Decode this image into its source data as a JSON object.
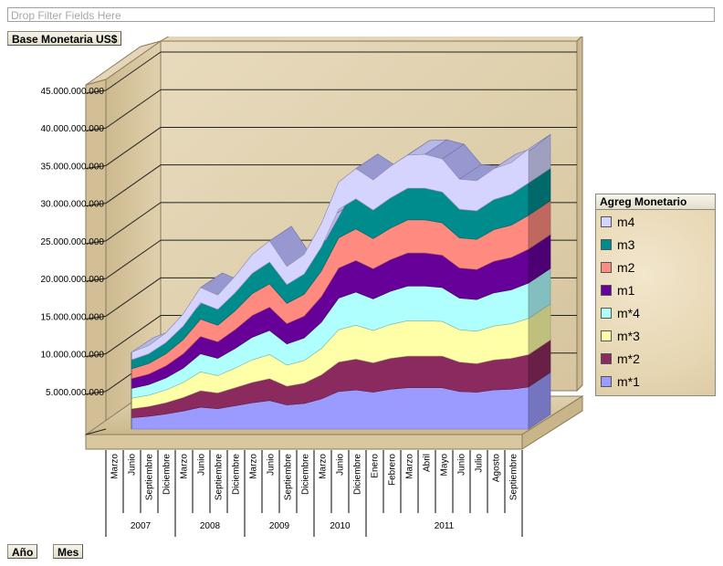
{
  "filter_zone": {
    "placeholder": "Drop Filter Fields Here"
  },
  "data_field": {
    "label": "Base Monetaria US$"
  },
  "row_fields": [
    {
      "label": "Año"
    },
    {
      "label": "Mes"
    }
  ],
  "legend": {
    "title": "Agreg Monetario"
  },
  "chart_data": {
    "type": "area",
    "stacked": true,
    "three_d": true,
    "ylim": [
      0,
      45000000000
    ],
    "yticks": [
      5000000000,
      10000000000,
      15000000000,
      20000000000,
      25000000000,
      30000000000,
      35000000000,
      40000000000,
      45000000000
    ],
    "ytick_labels": [
      "5.000.000.000",
      "10.000.000.000",
      "15.000.000.000",
      "20.000.000.000",
      "25.000.000.000",
      "30.000.000.000",
      "35.000.000.000",
      "40.000.000.000",
      "45.000.000.000"
    ],
    "categories": [
      "Marzo",
      "Junio",
      "Septiembre",
      "Diciembre",
      "Marzo",
      "Junio",
      "Septiembre",
      "Diciembre",
      "Marzo",
      "Junio",
      "Septiembre",
      "Diciembre",
      "Marzo",
      "Junio",
      "Diciembre",
      "Enero",
      "Febrero",
      "Marzo",
      "Abril",
      "Mayo",
      "Junio",
      "Julio",
      "Agosto",
      "Septiembre"
    ],
    "year_groups": [
      {
        "label": "2007",
        "count": 4
      },
      {
        "label": "2008",
        "count": 4
      },
      {
        "label": "2009",
        "count": 4
      },
      {
        "label": "2010",
        "count": 3
      },
      {
        "label": "2011",
        "count": 9
      }
    ],
    "legend_position": "right",
    "series": [
      {
        "name": "m*1",
        "color": "#9a9aff",
        "values": [
          1.5,
          1.7,
          2.0,
          2.4,
          2.9,
          2.7,
          3.1,
          3.5,
          3.8,
          3.2,
          3.4,
          4.0,
          5.0,
          5.2,
          4.9,
          5.3,
          5.5,
          5.5,
          5.5,
          5.0,
          4.9,
          5.2,
          5.3,
          5.6
        ]
      },
      {
        "name": "m*2",
        "color": "#8a2a5e",
        "values": [
          1.2,
          1.3,
          1.5,
          1.8,
          2.2,
          2.1,
          2.4,
          2.7,
          2.9,
          2.5,
          2.7,
          3.2,
          3.9,
          4.1,
          3.9,
          4.1,
          4.2,
          4.2,
          4.2,
          3.9,
          3.8,
          4.0,
          4.1,
          4.3
        ]
      },
      {
        "name": "m*3",
        "color": "#ffffa8",
        "values": [
          1.4,
          1.5,
          1.7,
          2.0,
          2.5,
          2.3,
          2.6,
          3.0,
          3.2,
          2.8,
          3.0,
          3.5,
          4.3,
          4.5,
          4.3,
          4.5,
          4.7,
          4.7,
          4.6,
          4.3,
          4.3,
          4.5,
          4.6,
          4.8
        ]
      },
      {
        "name": "m*4",
        "color": "#b0ffff",
        "values": [
          1.3,
          1.4,
          1.6,
          1.9,
          2.4,
          2.3,
          2.6,
          3.0,
          3.2,
          2.8,
          3.0,
          3.5,
          4.2,
          4.4,
          4.2,
          4.4,
          4.6,
          4.6,
          4.5,
          4.2,
          4.2,
          4.4,
          4.5,
          4.7
        ]
      },
      {
        "name": "m1",
        "color": "#660099",
        "values": [
          1.3,
          1.4,
          1.6,
          1.9,
          2.3,
          2.2,
          2.5,
          2.9,
          3.1,
          2.7,
          2.9,
          3.4,
          4.0,
          4.2,
          4.0,
          4.2,
          4.4,
          4.4,
          4.3,
          4.0,
          4.0,
          4.2,
          4.3,
          4.5
        ]
      },
      {
        "name": "m2",
        "color": "#ff8a80",
        "values": [
          1.3,
          1.4,
          1.6,
          1.9,
          2.3,
          2.2,
          2.5,
          2.9,
          3.1,
          2.7,
          2.9,
          3.4,
          4.0,
          4.2,
          4.0,
          4.2,
          4.4,
          4.4,
          4.3,
          4.0,
          4.0,
          4.2,
          4.3,
          4.5
        ]
      },
      {
        "name": "m3",
        "color": "#008c8c",
        "values": [
          1.2,
          1.3,
          1.5,
          1.8,
          2.2,
          2.1,
          2.4,
          2.7,
          2.9,
          2.5,
          2.7,
          3.2,
          3.8,
          4.0,
          3.8,
          4.0,
          4.2,
          4.2,
          4.1,
          3.8,
          3.8,
          4.0,
          4.1,
          4.3
        ]
      },
      {
        "name": "m4",
        "color": "#d4d4ff",
        "values": [
          1.0,
          1.1,
          1.3,
          1.6,
          2.0,
          1.9,
          2.2,
          2.5,
          2.8,
          2.4,
          2.6,
          3.1,
          3.6,
          4.0,
          4.0,
          4.2,
          4.4,
          4.5,
          4.4,
          4.0,
          4.0,
          4.1,
          4.2,
          4.5
        ]
      }
    ],
    "value_unit_scale": 1000000000
  }
}
